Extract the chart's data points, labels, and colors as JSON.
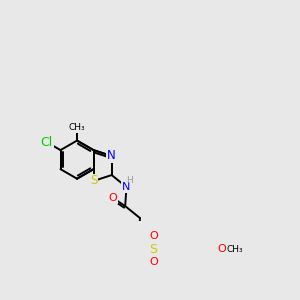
{
  "background_color": "#e8e8e8",
  "fig_size": [
    3.0,
    3.0
  ],
  "dpi": 100,
  "atom_colors": {
    "C": "#000000",
    "N": "#0000ff",
    "O": "#ff0000",
    "S": "#cccc00",
    "Cl": "#00cc00",
    "H": "#999999"
  },
  "bond_color": "#000000",
  "bond_width": 1.4,
  "font_size_atom": 8,
  "font_size_small": 7
}
